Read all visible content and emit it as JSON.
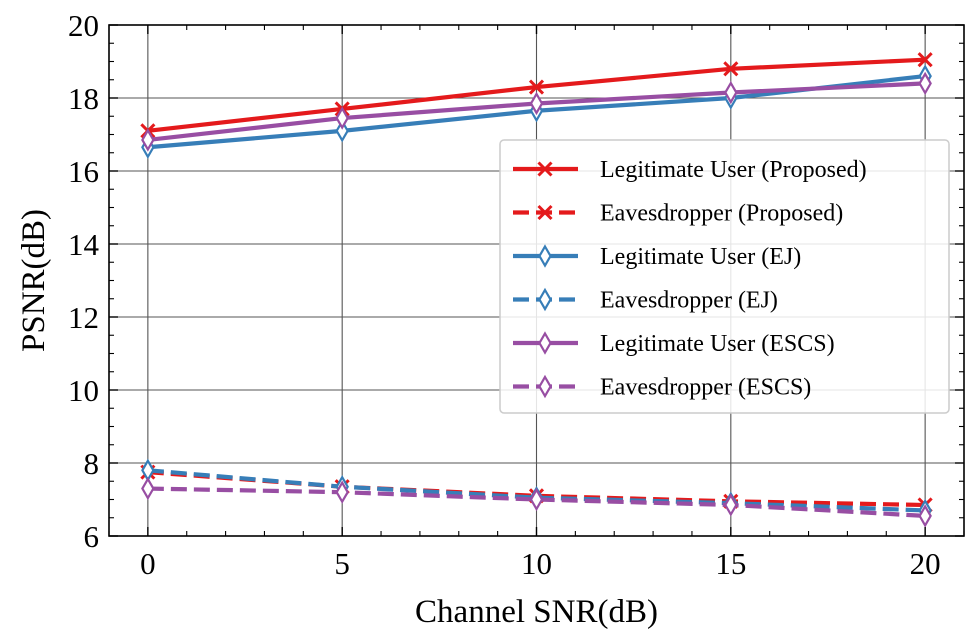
{
  "chart_data": {
    "type": "line",
    "title": "",
    "xlabel": "Channel SNR(dB)",
    "ylabel": "PSNR(dB)",
    "x": [
      0,
      5,
      10,
      15,
      20
    ],
    "xlim": [
      -1,
      21
    ],
    "ylim": [
      6,
      20
    ],
    "xticks": [
      0,
      5,
      10,
      15,
      20
    ],
    "yticks": [
      6,
      8,
      10,
      12,
      14,
      16,
      18,
      20
    ],
    "grid": true,
    "legend_position": "center-right",
    "series": [
      {
        "name": "Legitimate User (Proposed)",
        "color": "#e41a1c",
        "linestyle": "solid",
        "marker": "x",
        "values": [
          17.1,
          17.7,
          18.3,
          18.8,
          19.05
        ]
      },
      {
        "name": "Eavesdropper (Proposed)",
        "color": "#e41a1c",
        "linestyle": "dashed",
        "marker": "x",
        "values": [
          7.75,
          7.35,
          7.1,
          6.95,
          6.85
        ]
      },
      {
        "name": "Legitimate User (EJ)",
        "color": "#377eb8",
        "linestyle": "solid",
        "marker": "thin_diamond",
        "values": [
          16.65,
          17.1,
          17.65,
          18.0,
          18.6
        ]
      },
      {
        "name": "Eavesdropper (EJ)",
        "color": "#377eb8",
        "linestyle": "dashed",
        "marker": "thin_diamond",
        "values": [
          7.8,
          7.35,
          7.05,
          6.9,
          6.7
        ]
      },
      {
        "name": "Legitimate User (ESCS)",
        "color": "#984ea3",
        "linestyle": "solid",
        "marker": "thin_diamond",
        "values": [
          16.85,
          17.45,
          17.85,
          18.15,
          18.4
        ]
      },
      {
        "name": "Eavesdropper (ESCS)",
        "color": "#984ea3",
        "linestyle": "dashed",
        "marker": "thin_diamond",
        "values": [
          7.3,
          7.2,
          7.0,
          6.85,
          6.55
        ]
      }
    ]
  }
}
